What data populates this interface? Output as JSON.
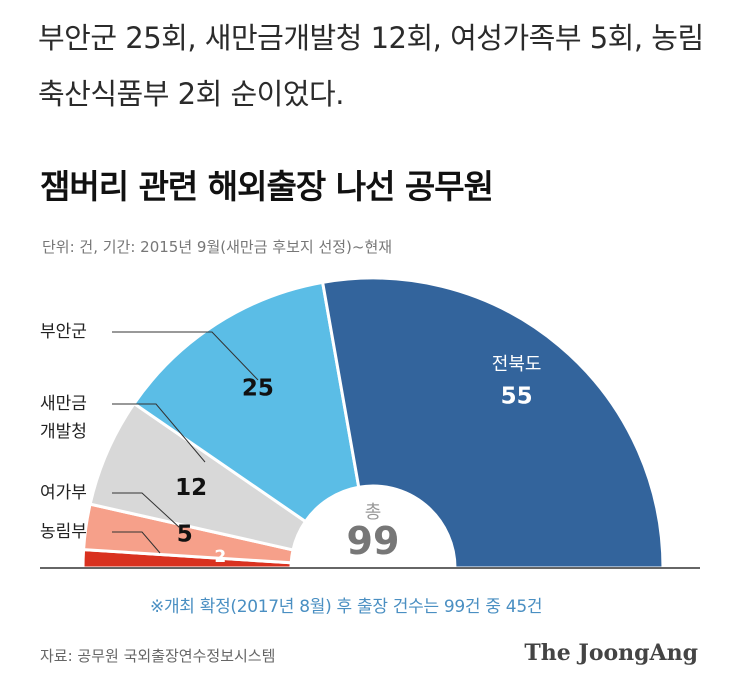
{
  "intro_text": "부안군 25회, 새만금개발청 12회, 여성가족부 5회, 농림축산식품부 2회 순이었다.",
  "title": "잼버리 관련 해외출장 나선 공무원",
  "subtitle": "단위: 건, 기간: 2015년 9월(새만금 후보지 선정)~현재",
  "chart_data": {
    "type": "pie",
    "variant": "semi-donut",
    "title": "잼버리 관련 해외출장 나선 공무원",
    "unit": "건",
    "slices": [
      {
        "label": "농림부",
        "value": 2,
        "color": "#d9311f"
      },
      {
        "label": "여가부",
        "value": 5,
        "color": "#f6a08a"
      },
      {
        "label": "새만금 개발청",
        "value": 12,
        "color": "#d8d8d8"
      },
      {
        "label": "부안군",
        "value": 25,
        "color": "#5bbde6"
      },
      {
        "label": "전북도",
        "value": 55,
        "color": "#33649c"
      }
    ],
    "total_label": "총",
    "total": 99
  },
  "callouts": {
    "buan": "부안군",
    "saemangeum_line1": "새만금",
    "saemangeum_line2": "개발청",
    "yeoga": "여가부",
    "nongrim": "농림부"
  },
  "note": "※개최 확정(2017년 8월) 후 출장 건수는 99건 중 45건",
  "source": "자료: 공무원 국외출장연수정보시스템",
  "logo": "The JoongAng"
}
